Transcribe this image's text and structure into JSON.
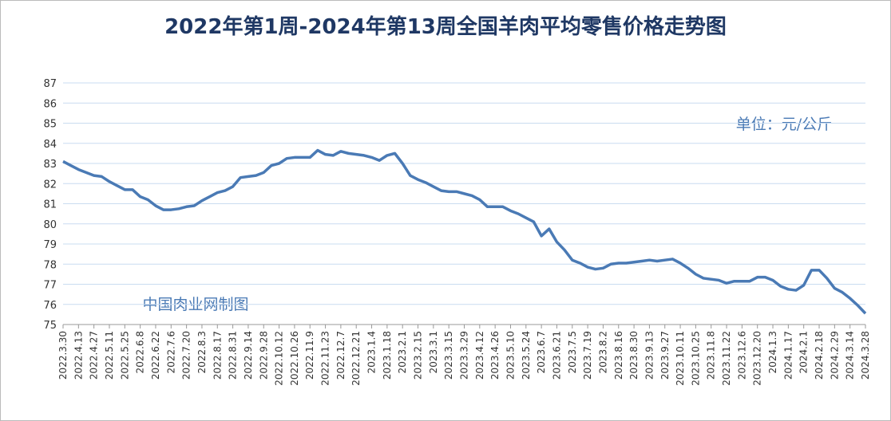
{
  "chart_data": {
    "type": "line",
    "title": "2022年第1周-2024年第13周全国羊肉平均零售价格走势图",
    "annotations": [
      "单位：元/公斤",
      "中国肉业网制图"
    ],
    "categories": [
      "2022.3.30",
      null,
      "2022.4.13",
      null,
      "2022.4.27",
      null,
      "2022.5.11",
      null,
      "2022.5.25",
      null,
      "2022.6.8",
      null,
      "2022.6.22",
      null,
      "2022.7.6",
      null,
      "2022.7.20",
      null,
      "2022.8.3",
      null,
      "2022.8.17",
      null,
      "2022.8.31",
      null,
      "2022.9.14",
      null,
      "2022.9.28",
      null,
      "2022.10.12",
      null,
      "2022.10.26",
      null,
      "2022.11.9",
      null,
      "2022.11.23",
      null,
      "2022.12.7",
      null,
      "2022.12.21",
      null,
      "2023.1.4",
      null,
      "2023.1.18",
      null,
      "2023.2.1",
      null,
      "2023.2.15",
      null,
      "2023.3.1",
      null,
      "2023.3.15",
      null,
      "2023.3.29",
      null,
      "2023.4.12",
      null,
      "2023.4.26",
      null,
      "2023.5.10",
      null,
      "2023.5.24",
      null,
      "2023.6.7",
      null,
      "2023.6.21",
      null,
      "2023.7.5",
      null,
      "2023.7.19",
      null,
      "2023.8.2",
      null,
      "2023.8.16",
      null,
      "2023.8.30",
      null,
      "2023.9.13",
      null,
      "2023.9.27",
      null,
      "2023.10.11",
      null,
      "2023.10.25",
      null,
      "2023.11.8",
      null,
      "2023.11.22",
      null,
      "2023.12.6",
      null,
      "2023.12.20",
      null,
      "2024.1.3",
      null,
      "2024.1.17",
      null,
      "2024.2.1",
      null,
      "2024.2.18",
      null,
      "2024.2.29",
      null,
      "2024.3.14",
      null,
      "2024.3.28"
    ],
    "series": [
      {
        "name": "全国羊肉平均零售价格",
        "color": "#4a7ab5",
        "values": [
          83.1,
          82.9,
          82.7,
          82.55,
          82.4,
          82.35,
          82.1,
          81.9,
          81.7,
          81.7,
          81.35,
          81.2,
          80.9,
          80.7,
          80.7,
          80.75,
          80.85,
          80.9,
          81.15,
          81.35,
          81.55,
          81.65,
          81.85,
          82.3,
          82.35,
          82.4,
          82.55,
          82.9,
          83.0,
          83.25,
          83.3,
          83.3,
          83.3,
          83.65,
          83.45,
          83.4,
          83.6,
          83.5,
          83.45,
          83.4,
          83.3,
          83.15,
          83.4,
          83.5,
          83.0,
          82.4,
          82.2,
          82.05,
          81.85,
          81.65,
          81.6,
          81.6,
          81.5,
          81.4,
          81.2,
          80.85,
          80.85,
          80.85,
          80.65,
          80.5,
          80.3,
          80.1,
          79.4,
          79.75,
          79.1,
          78.7,
          78.2,
          78.05,
          77.85,
          77.75,
          77.8,
          78.0,
          78.05,
          78.05,
          78.1,
          78.15,
          78.2,
          78.15,
          78.2,
          78.25,
          78.05,
          77.8,
          77.5,
          77.3,
          77.25,
          77.2,
          77.05,
          77.15,
          77.15,
          77.15,
          77.35,
          77.35,
          77.2,
          76.9,
          76.75,
          76.7,
          76.95,
          77.7,
          77.7,
          77.3,
          76.8,
          76.6,
          76.3,
          75.95,
          75.55
        ]
      }
    ],
    "ylim": [
      75,
      87
    ],
    "yticks": [
      75,
      76,
      77,
      78,
      79,
      80,
      81,
      82,
      83,
      84,
      85,
      86,
      87
    ],
    "grid": true
  }
}
